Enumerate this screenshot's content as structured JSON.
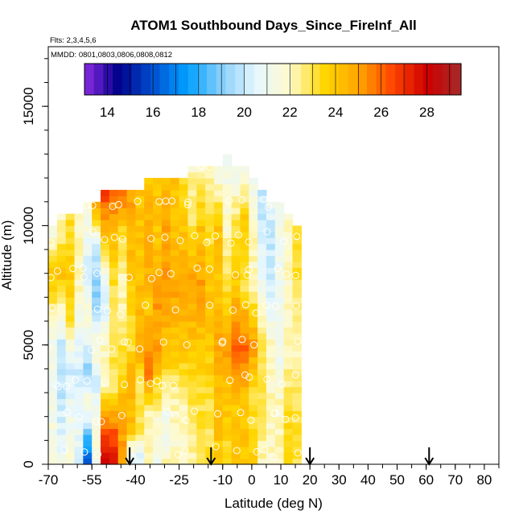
{
  "chart_data": {
    "type": "heatmap",
    "title": "ATOM1 Southbound Days_Since_FireInf_All",
    "subtitle_flights": "Flts: 2,3,4,5,6",
    "subtitle_dates": "MMDD: 0801,0803,0806,0808,0812",
    "xlabel": "Latitude (deg N)",
    "ylabel": "Altitude (m)",
    "xlim": [
      -70,
      85
    ],
    "ylim": [
      0,
      17500
    ],
    "x_ticks": [
      -70,
      -55,
      -40,
      -25,
      -10,
      0,
      10,
      20,
      30,
      40,
      50,
      60,
      70,
      80
    ],
    "x_tick_labels": [
      "-70",
      "-55",
      "-40",
      "-25",
      "-10",
      "0",
      "10",
      "20",
      "30",
      "40",
      "50",
      "60",
      "70",
      "80"
    ],
    "y_ticks": [
      0,
      5000,
      10000,
      15000
    ],
    "y_tick_labels": [
      "0",
      "5000",
      "10000",
      "15000"
    ],
    "colorbar": {
      "range": [
        13,
        29.5
      ],
      "ticks": [
        14,
        16,
        18,
        20,
        22,
        24,
        26,
        28
      ],
      "tick_labels": [
        "14",
        "16",
        "18",
        "20",
        "22",
        "24",
        "26",
        "28"
      ],
      "colors": [
        "#8a2be2",
        "#00008b",
        "#0050d0",
        "#00a0ff",
        "#87cefa",
        "#e6f7ff",
        "#fffacd",
        "#ffd700",
        "#ffa500",
        "#ff4500",
        "#cd0000",
        "#a52a2a"
      ]
    },
    "profile_arrows_lat": [
      -42,
      -14,
      20,
      61
    ],
    "grid": {
      "lat_start": -70,
      "lat_step": 3,
      "alt_step": 250,
      "columns": [
        {
          "top": 10000,
          "anchors": [
            [
              0,
              22
            ],
            [
              2500,
              21
            ],
            [
              5000,
              21
            ],
            [
              8000,
              24
            ],
            [
              10000,
              21
            ]
          ]
        },
        {
          "top": 10500,
          "anchors": [
            [
              0,
              21
            ],
            [
              2500,
              20
            ],
            [
              5000,
              20
            ],
            [
              8000,
              24
            ],
            [
              10500,
              22
            ]
          ]
        },
        {
          "top": 10500,
          "anchors": [
            [
              0,
              22
            ],
            [
              2000,
              21
            ],
            [
              4000,
              20
            ],
            [
              6000,
              23
            ],
            [
              8000,
              24
            ],
            [
              10500,
              23
            ]
          ]
        },
        {
          "top": 10500,
          "anchors": [
            [
              0,
              20
            ],
            [
              1500,
              21
            ],
            [
              3500,
              20
            ],
            [
              5500,
              21
            ],
            [
              7500,
              22
            ],
            [
              10500,
              22
            ]
          ]
        },
        {
          "top": 11000,
          "anchors": [
            [
              0,
              16
            ],
            [
              1000,
              18
            ],
            [
              2500,
              22
            ],
            [
              4000,
              19
            ],
            [
              6000,
              22
            ],
            [
              8000,
              20
            ],
            [
              11000,
              22
            ]
          ]
        },
        {
          "top": 11000,
          "anchors": [
            [
              0,
              21
            ],
            [
              1500,
              22
            ],
            [
              3500,
              20
            ],
            [
              5000,
              22
            ],
            [
              7000,
              19
            ],
            [
              9000,
              20
            ],
            [
              11000,
              25
            ]
          ]
        },
        {
          "top": 11500,
          "anchors": [
            [
              0,
              28
            ],
            [
              1500,
              26
            ],
            [
              3500,
              22
            ],
            [
              5000,
              22
            ],
            [
              7000,
              20
            ],
            [
              9000,
              23
            ],
            [
              11500,
              27
            ]
          ]
        },
        {
          "top": 11500,
          "anchors": [
            [
              0,
              28
            ],
            [
              1500,
              26
            ],
            [
              3000,
              23
            ],
            [
              5000,
              23
            ],
            [
              7500,
              23
            ],
            [
              9500,
              24
            ],
            [
              11500,
              26
            ]
          ]
        },
        {
          "top": 11500,
          "anchors": [
            [
              0,
              25
            ],
            [
              1500,
              25
            ],
            [
              3000,
              24
            ],
            [
              5000,
              23
            ],
            [
              7500,
              22
            ],
            [
              9500,
              23
            ],
            [
              11500,
              26
            ]
          ]
        },
        {
          "top": 11500,
          "anchors": [
            [
              0,
              20
            ],
            [
              1500,
              24
            ],
            [
              3500,
              25
            ],
            [
              5000,
              23
            ],
            [
              8000,
              24
            ],
            [
              11500,
              25
            ]
          ]
        },
        {
          "top": 11500,
          "anchors": [
            [
              0,
              20
            ],
            [
              1500,
              23
            ],
            [
              3500,
              23
            ],
            [
              5000,
              25
            ],
            [
              8000,
              24
            ],
            [
              11500,
              24
            ]
          ]
        },
        {
          "top": 12000,
          "anchors": [
            [
              0,
              22
            ],
            [
              2000,
              22
            ],
            [
              4000,
              26
            ],
            [
              6500,
              24
            ],
            [
              9000,
              25
            ],
            [
              12000,
              24
            ]
          ]
        },
        {
          "top": 12000,
          "anchors": [
            [
              0,
              21
            ],
            [
              2000,
              22
            ],
            [
              4500,
              25
            ],
            [
              7000,
              25
            ],
            [
              9500,
              24
            ],
            [
              12000,
              24
            ]
          ]
        },
        {
          "top": 12000,
          "anchors": [
            [
              0,
              22
            ],
            [
              2000,
              21
            ],
            [
              4500,
              24
            ],
            [
              7000,
              25
            ],
            [
              9500,
              25
            ],
            [
              12000,
              24
            ]
          ]
        },
        {
          "top": 12000,
          "anchors": [
            [
              0,
              22
            ],
            [
              2500,
              22
            ],
            [
              5000,
              24
            ],
            [
              7500,
              25
            ],
            [
              10000,
              24
            ],
            [
              12000,
              24
            ]
          ]
        },
        {
          "top": 12000,
          "anchors": [
            [
              0,
              22
            ],
            [
              2500,
              22
            ],
            [
              5000,
              24
            ],
            [
              7500,
              25
            ],
            [
              10000,
              24
            ],
            [
              12000,
              23
            ]
          ]
        },
        {
          "top": 12500,
          "anchors": [
            [
              0,
              22
            ],
            [
              2500,
              23
            ],
            [
              5000,
              24
            ],
            [
              7500,
              25
            ],
            [
              10000,
              23
            ],
            [
              12500,
              22
            ]
          ]
        },
        {
          "top": 12500,
          "anchors": [
            [
              0,
              23
            ],
            [
              2500,
              23
            ],
            [
              5000,
              24
            ],
            [
              7500,
              25
            ],
            [
              10000,
              24
            ],
            [
              12500,
              22
            ]
          ]
        },
        {
          "top": 12500,
          "anchors": [
            [
              0,
              23
            ],
            [
              2500,
              23
            ],
            [
              5000,
              24
            ],
            [
              7500,
              24
            ],
            [
              10000,
              23
            ],
            [
              12500,
              22
            ]
          ]
        },
        {
          "top": 12500,
          "anchors": [
            [
              0,
              24
            ],
            [
              2500,
              24
            ],
            [
              5000,
              25
            ],
            [
              7500,
              24
            ],
            [
              10000,
              24
            ],
            [
              12500,
              21
            ]
          ]
        },
        {
          "top": 13000,
          "anchors": [
            [
              0,
              23
            ],
            [
              2500,
              24
            ],
            [
              5000,
              25
            ],
            [
              7500,
              23
            ],
            [
              10000,
              22
            ],
            [
              13000,
              21
            ]
          ]
        },
        {
          "top": 12500,
          "anchors": [
            [
              0,
              24
            ],
            [
              2500,
              24
            ],
            [
              5000,
              26
            ],
            [
              7500,
              24
            ],
            [
              10000,
              23
            ],
            [
              12500,
              21
            ]
          ]
        },
        {
          "top": 12500,
          "anchors": [
            [
              0,
              24
            ],
            [
              2500,
              24
            ],
            [
              5000,
              26
            ],
            [
              7500,
              23
            ],
            [
              10000,
              24
            ],
            [
              12500,
              21
            ]
          ]
        },
        {
          "top": 12000,
          "anchors": [
            [
              0,
              24
            ],
            [
              2500,
              23
            ],
            [
              5000,
              25
            ],
            [
              7500,
              22
            ],
            [
              10000,
              22
            ],
            [
              12000,
              21
            ]
          ]
        },
        {
          "top": 11500,
          "anchors": [
            [
              0,
              22
            ],
            [
              2500,
              23
            ],
            [
              5000,
              23
            ],
            [
              7500,
              21
            ],
            [
              10000,
              20
            ],
            [
              11500,
              20
            ]
          ]
        },
        {
          "top": 11000,
          "anchors": [
            [
              0,
              22
            ],
            [
              2500,
              22
            ],
            [
              5000,
              22
            ],
            [
              7500,
              20
            ],
            [
              10000,
              20
            ],
            [
              11000,
              21
            ]
          ]
        },
        {
          "top": 11000,
          "anchors": [
            [
              0,
              22
            ],
            [
              2500,
              22
            ],
            [
              5000,
              21
            ],
            [
              7500,
              21
            ],
            [
              10000,
              21
            ],
            [
              11000,
              21
            ]
          ]
        },
        {
          "top": 10500,
          "anchors": [
            [
              0,
              24
            ],
            [
              2500,
              23
            ],
            [
              5000,
              22
            ],
            [
              7500,
              22
            ],
            [
              10500,
              22
            ]
          ]
        },
        {
          "top": 10000,
          "anchors": [
            [
              0,
              23
            ],
            [
              2500,
              23
            ],
            [
              5000,
              22
            ],
            [
              7500,
              23
            ],
            [
              10000,
              23
            ]
          ]
        }
      ]
    }
  }
}
